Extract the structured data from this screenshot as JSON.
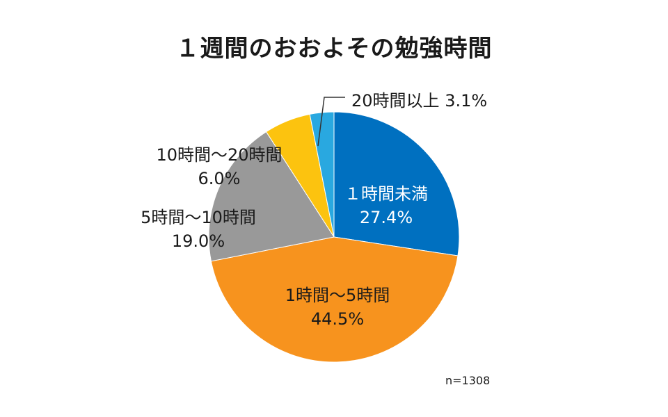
{
  "chart_data": {
    "type": "pie",
    "title": "１週間のおおよその勉強時間",
    "note": "n=1308",
    "start_angle_deg": 0,
    "direction": "clockwise",
    "slices": [
      {
        "label": "１時間未満",
        "value": 27.4,
        "display": "27.4%",
        "color": "#0070c0"
      },
      {
        "label": "1時間〜5時間",
        "value": 44.5,
        "display": "44.5%",
        "color": "#f7931e"
      },
      {
        "label": "5時間〜10時間",
        "value": 19.0,
        "display": "19.0%",
        "color": "#999999"
      },
      {
        "label": "10時間〜20時間",
        "value": 6.0,
        "display": "6.0%",
        "color": "#fcc30f"
      },
      {
        "label": "20時間以上",
        "value": 3.1,
        "display": "3.1%",
        "color": "#29a8e0"
      }
    ]
  }
}
